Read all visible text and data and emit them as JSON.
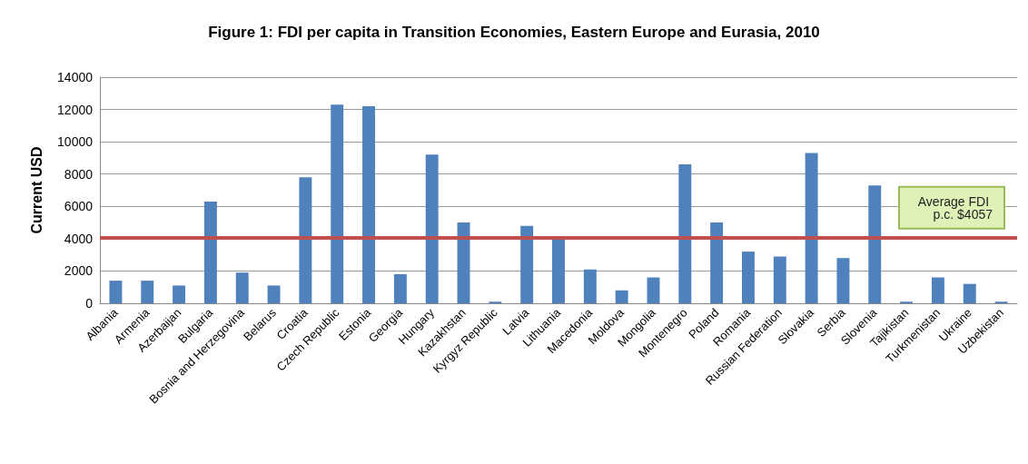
{
  "chart_data": {
    "type": "bar",
    "title": "Figure 1: FDI per capita in Transition Economies, Eastern Europe and Eurasia, 2010",
    "ylabel": "Current USD",
    "categories": [
      "Albania",
      "Armenia",
      "Azerbaijan",
      "Bulgaria",
      "Bosnia and Herzegovina",
      "Belarus",
      "Croatia",
      "Czech Republic",
      "Estonia",
      "Georgia",
      "Hungary",
      "Kazakhstan",
      "Kyrgyz Republic",
      "Latvia",
      "Lithuania",
      "Macedonia",
      "Moldova",
      "Mongolia",
      "Montenegro",
      "Poland",
      "Romania",
      "Russian Federation",
      "Slovakia",
      "Serbia",
      "Slovenia",
      "Tajikistan",
      "Turkmenistan",
      "Ukraine",
      "Uzbekistan"
    ],
    "values": [
      1400,
      1400,
      1100,
      6300,
      1900,
      1100,
      7800,
      12300,
      12200,
      1800,
      9200,
      5000,
      100,
      4800,
      4000,
      2100,
      800,
      1600,
      8600,
      5000,
      3200,
      2900,
      9300,
      2800,
      7300,
      100,
      1600,
      1200,
      100
    ],
    "color": "#4f81bd",
    "ylim": [
      0,
      14000
    ],
    "yticks": [
      0,
      2000,
      4000,
      6000,
      8000,
      10000,
      12000,
      14000
    ],
    "grid": "y",
    "ref_lines": [
      {
        "axis": "y",
        "value": 4057,
        "label": "Average FDI p.c. $4057",
        "color": "#c0504d"
      }
    ]
  }
}
